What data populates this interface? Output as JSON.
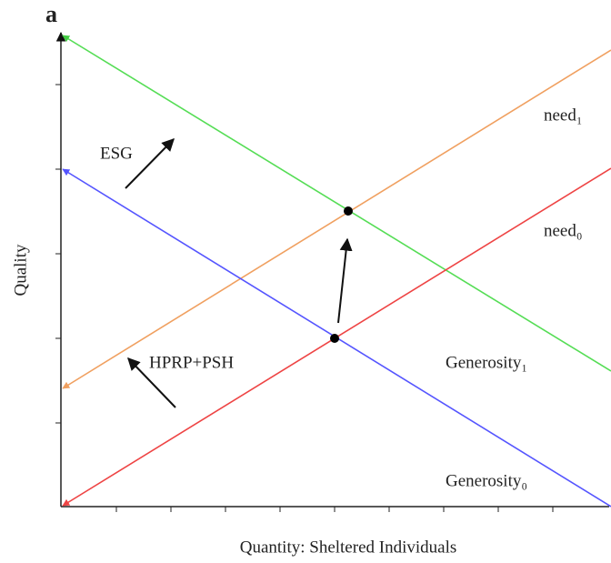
{
  "panel_label": "a",
  "axes": {
    "y_label": "Quality",
    "x_label": "Quantity: Sheltered Individuals"
  },
  "arrows": {
    "esg": "ESG",
    "hprp": "HPRP+PSH"
  },
  "curves": {
    "need_1": "need₁",
    "need_0": "need₀",
    "generosity_1": "Generosity₁",
    "generosity_0": "Generosity₀"
  }
}
